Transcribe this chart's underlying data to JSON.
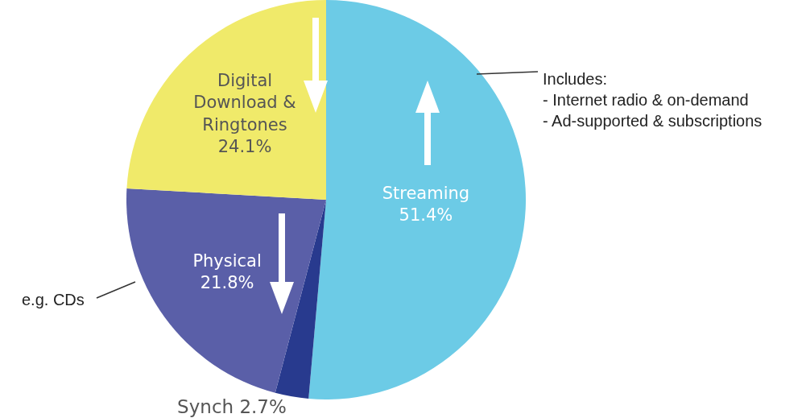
{
  "chart_data": {
    "type": "pie",
    "categories": [
      "Streaming",
      "Synch",
      "Physical",
      "Digital Download & Ringtones"
    ],
    "values": [
      51.4,
      2.7,
      21.8,
      24.1
    ],
    "colors": [
      "#6ccbe6",
      "#283a8e",
      "#5a5fa8",
      "#f0ea6a"
    ],
    "value_labels": [
      "51.4%",
      "2.7%",
      "21.8%",
      "24.1%"
    ],
    "annotations": [
      "Includes:\n- Internet radio & on-demand\n- Ad-supported & subscriptions",
      "e.g. CDs"
    ]
  }
}
